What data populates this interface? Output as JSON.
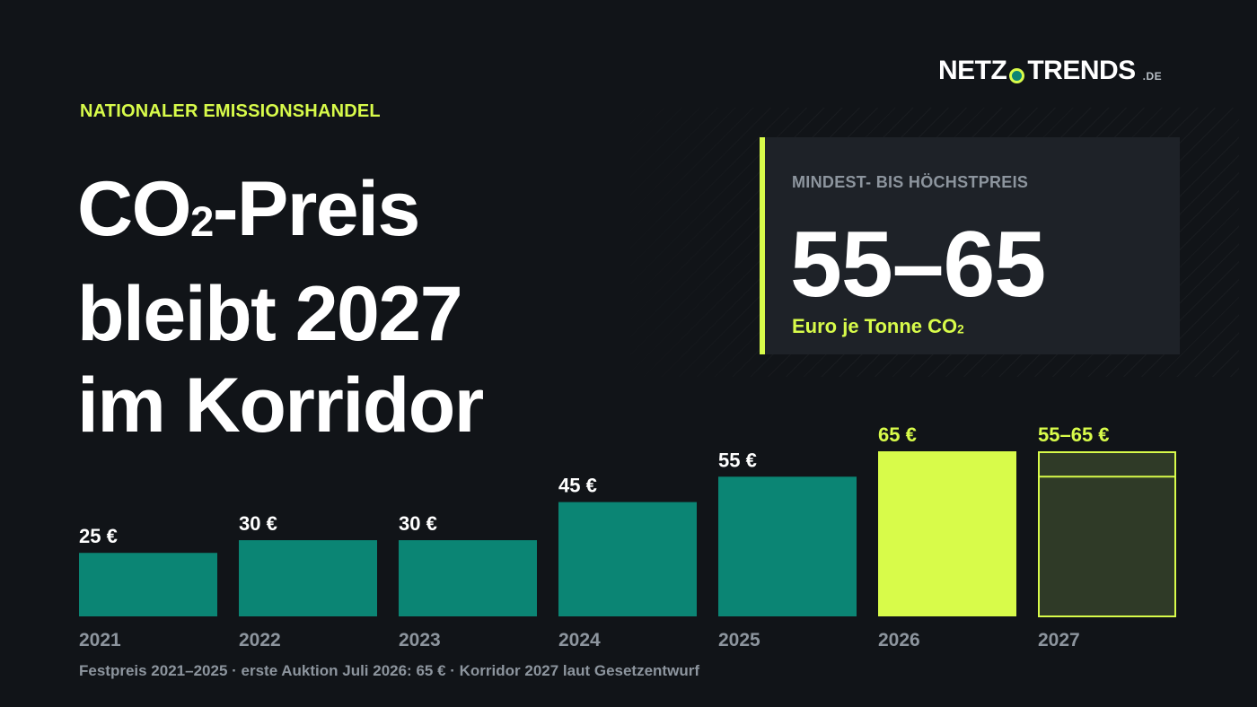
{
  "logo": {
    "left": "NETZ",
    "right": "TRENDS",
    "tld": ".DE"
  },
  "kicker": "NATIONALER EMISSIONSHANDEL",
  "headline": {
    "line1_pre": "CO",
    "line1_sub": "2",
    "line1_post": "-Preis",
    "line2": "bleibt 2027",
    "line3": "im Korridor"
  },
  "panel": {
    "label": "MINDEST- BIS HÖCHSTPREIS",
    "value": "55–65",
    "unit_pre": "Euro je Tonne CO",
    "unit_sub": "2"
  },
  "colors": {
    "background": "#111418",
    "teal": "#0b8574",
    "accent": "#d8fb4a",
    "corridor_fill": "#2f3a27",
    "muted_text": "#8d959e"
  },
  "chart_data": {
    "type": "bar",
    "categories": [
      "2021",
      "2022",
      "2023",
      "2024",
      "2025",
      "2026",
      "2027"
    ],
    "values": [
      25,
      30,
      30,
      45,
      55,
      65,
      65
    ],
    "range_min": [
      null,
      null,
      null,
      null,
      null,
      null,
      55
    ],
    "labels": [
      "25 €",
      "30 €",
      "30 €",
      "45 €",
      "55 €",
      "65 €",
      "55–65 €"
    ],
    "kinds": [
      "fixed",
      "fixed",
      "fixed",
      "fixed",
      "fixed",
      "auction",
      "corridor"
    ],
    "ylim": [
      0,
      65
    ],
    "grid": false,
    "legend": "none"
  },
  "footnote": "Festpreis 2021–2025  ·  erste Auktion Juli 2026: 65 €  ·  Korridor 2027 laut Gesetzentwurf"
}
